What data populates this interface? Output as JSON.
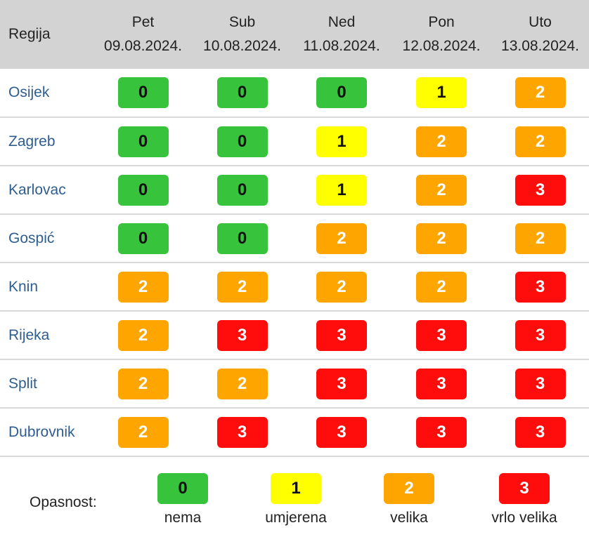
{
  "table": {
    "region_header": "Regija",
    "days": [
      {
        "name": "Pet",
        "date": "09.08.2024."
      },
      {
        "name": "Sub",
        "date": "10.08.2024."
      },
      {
        "name": "Ned",
        "date": "11.08.2024."
      },
      {
        "name": "Pon",
        "date": "12.08.2024."
      },
      {
        "name": "Uto",
        "date": "13.08.2024."
      }
    ],
    "rows": [
      {
        "region": "Osijek",
        "levels": [
          "0",
          "0",
          "0",
          "1",
          "2"
        ]
      },
      {
        "region": "Zagreb",
        "levels": [
          "0",
          "0",
          "1",
          "2",
          "2"
        ]
      },
      {
        "region": "Karlovac",
        "levels": [
          "0",
          "0",
          "1",
          "2",
          "3"
        ]
      },
      {
        "region": "Gospić",
        "levels": [
          "0",
          "0",
          "2",
          "2",
          "2"
        ]
      },
      {
        "region": "Knin",
        "levels": [
          "2",
          "2",
          "2",
          "2",
          "3"
        ]
      },
      {
        "region": "Rijeka",
        "levels": [
          "2",
          "3",
          "3",
          "3",
          "3"
        ]
      },
      {
        "region": "Split",
        "levels": [
          "2",
          "2",
          "3",
          "3",
          "3"
        ]
      },
      {
        "region": "Dubrovnik",
        "levels": [
          "2",
          "3",
          "3",
          "3",
          "3"
        ]
      }
    ]
  },
  "legend": {
    "title": "Opasnost:",
    "items": [
      {
        "level": "0",
        "label": "nema"
      },
      {
        "level": "1",
        "label": "umjerena"
      },
      {
        "level": "2",
        "label": "velika"
      },
      {
        "level": "3",
        "label": "vrlo velika"
      }
    ]
  },
  "colors": {
    "level_0": "#37c43c",
    "level_1": "#ffff00",
    "level_2": "#ffa500",
    "level_3": "#ff0d0d",
    "header_bg": "#d3d3d3",
    "region_text": "#2e5d8f"
  }
}
